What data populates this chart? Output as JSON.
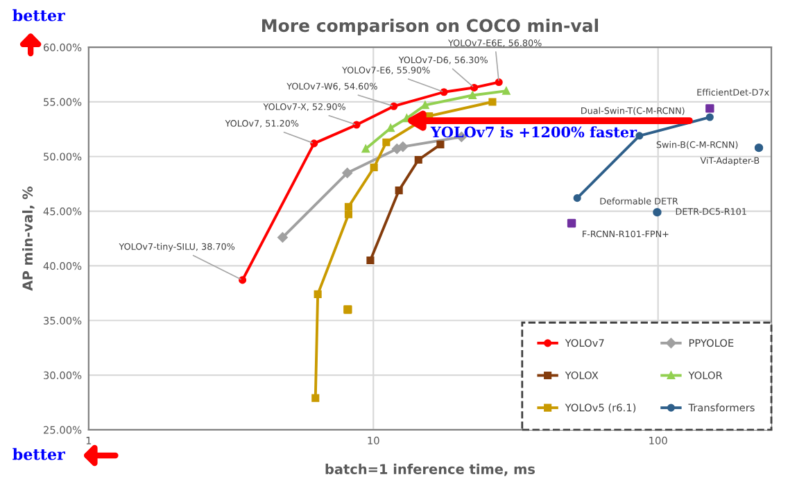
{
  "chart_data": {
    "type": "line",
    "title": "More comparison on COCO min-val",
    "xlabel": "batch=1 inference time, ms",
    "ylabel": "AP min-val, %",
    "log": "x",
    "grid": true,
    "legend": "bottom right",
    "xlim": [
      1,
      250
    ],
    "xticks": [
      1,
      10,
      100
    ],
    "ylim": [
      25,
      60
    ],
    "yticks": [
      {
        "value": 25,
        "label": "25.00%"
      },
      {
        "value": 30,
        "label": "30.00%"
      },
      {
        "value": 35,
        "label": "35.00%"
      },
      {
        "value": 40,
        "label": "40.00%"
      },
      {
        "value": 45,
        "label": "45.00%"
      },
      {
        "value": 50,
        "label": "50.00%"
      },
      {
        "value": 55,
        "label": "55.00%"
      },
      {
        "value": 60,
        "label": "60.00%"
      }
    ],
    "series": [
      {
        "name": "YOLOv7",
        "color": "#ff0000",
        "marker": "circle",
        "x": [
          3.47,
          6.19,
          8.73,
          11.8,
          17.7,
          22.6,
          27.6
        ],
        "values": [
          38.7,
          51.2,
          52.9,
          54.6,
          55.9,
          56.3,
          56.8
        ]
      },
      {
        "name": "PPYOLOE",
        "color": "#a0a0a0",
        "marker": "diamond",
        "x": [
          4.8,
          8.1,
          12.1,
          12.7,
          20.4
        ],
        "values": [
          42.6,
          48.5,
          50.7,
          50.9,
          51.8
        ]
      },
      {
        "name": "YOLOX",
        "color": "#843c0c",
        "marker": "square",
        "x": [
          9.76,
          12.3,
          14.4,
          17.2
        ],
        "values": [
          40.5,
          46.9,
          49.7,
          51.1
        ]
      },
      {
        "name": "YOLOR",
        "color": "#92d050",
        "marker": "triangle",
        "x": [
          9.4,
          11.5,
          13.1,
          15.2,
          22.3,
          29.3
        ],
        "values": [
          50.7,
          52.6,
          53.5,
          54.7,
          55.6,
          56.0
        ]
      },
      {
        "name": "YOLOv5 (r6.1)",
        "color": "#c99a00",
        "marker": "square",
        "x": [
          6.26,
          6.38,
          8.18,
          8.18,
          10.05,
          11.1,
          15.7,
          26.2
        ],
        "values": [
          27.9,
          37.4,
          44.7,
          45.4,
          49.0,
          51.3,
          53.7,
          55.0
        ]
      },
      {
        "name": "Transformers",
        "color": "#2e5f8a",
        "marker": "circle",
        "x": [
          52,
          86,
          152
        ],
        "values": [
          46.2,
          51.9,
          53.6
        ]
      },
      {
        "type": "scatter",
        "color": "#c99a00",
        "marker": "square",
        "x": [
          8.13
        ],
        "values": [
          36.0
        ]
      },
      {
        "type": "scatter",
        "color": "#2e5f8a",
        "marker": "circle",
        "x": [
          226,
          99.3
        ],
        "values": [
          50.8,
          44.9
        ]
      },
      {
        "type": "scatter",
        "color": "#7030a0",
        "marker": "square",
        "x": [
          152,
          49.7
        ],
        "values": [
          54.4,
          43.9
        ]
      }
    ],
    "annotations": [
      {
        "text": "YOLOv7-tiny-SILU, 38.70%",
        "x": 3.47,
        "y": 38.7
      },
      {
        "text": "YOLOv7, 51.20%",
        "x": 6.19,
        "y": 51.2
      },
      {
        "text": "YOLOv7-X, 52.90%",
        "x": 8.73,
        "y": 52.9
      },
      {
        "text": "YOLOv7-W6, 54.60%",
        "x": 11.8,
        "y": 54.6
      },
      {
        "text": "YOLOv7-E6, 55.90%",
        "x": 17.7,
        "y": 55.9
      },
      {
        "text": "YOLOv7-D6, 56.30%",
        "x": 22.6,
        "y": 56.3
      },
      {
        "text": "YOLOv7-E6E, 56.80%",
        "x": 27.6,
        "y": 56.8
      },
      {
        "text": "Dual-Swin-T(C-M-RCNN)",
        "x": 152,
        "y": 53.6
      },
      {
        "text": "EfficientDet-D7x",
        "x": 152,
        "y": 54.4
      },
      {
        "text": "Swin-B(C-M-RCNN)",
        "x": 86,
        "y": 51.9
      },
      {
        "text": "ViT-Adapter-B",
        "x": 226,
        "y": 50.8
      },
      {
        "text": "Deformable DETR",
        "x": 52,
        "y": 46.2
      },
      {
        "text": "DETR-DC5-R101",
        "x": 99.3,
        "y": 44.9
      },
      {
        "text": "F-RCNN-R101-FPN+",
        "x": 49.7,
        "y": 43.9
      },
      "YOLOv7 is +1200% faster",
      "better",
      "better"
    ]
  }
}
